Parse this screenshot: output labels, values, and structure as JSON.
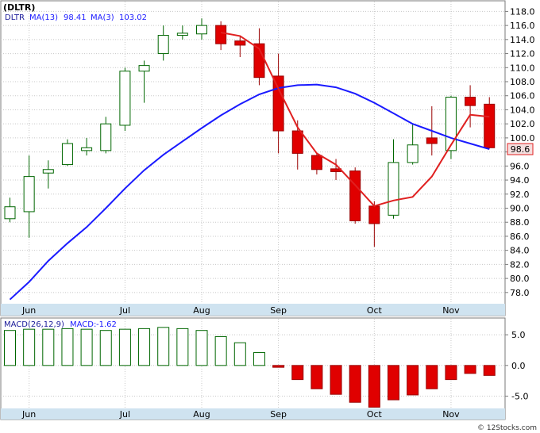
{
  "chart_data": [
    {
      "type": "candlestick",
      "title": "(DLTR)",
      "legend": [
        {
          "label": "DLTR",
          "color": "#000000"
        },
        {
          "label": "MA(13)",
          "value": "98.41",
          "color": "#1a1aff"
        },
        {
          "label": "MA(3)",
          "value": "103.02",
          "color": "#e02020"
        }
      ],
      "last_price_label": "98.6",
      "ylim": [
        76.4,
        119.4
      ],
      "y_ticks": [
        78.0,
        80.0,
        82.0,
        84.0,
        86.0,
        88.0,
        90.0,
        92.0,
        94.0,
        96.0,
        98.0,
        100.0,
        102.0,
        104.0,
        106.0,
        108.0,
        110.0,
        112.0,
        114.0,
        116.0,
        118.0
      ],
      "x_ticks": [
        {
          "index": 1,
          "label": "Jun"
        },
        {
          "index": 6,
          "label": "Jul"
        },
        {
          "index": 10,
          "label": "Aug"
        },
        {
          "index": 14,
          "label": "Sep"
        },
        {
          "index": 19,
          "label": "Oct"
        },
        {
          "index": 23,
          "label": "Nov"
        }
      ],
      "candles": [
        {
          "o": 88.5,
          "h": 91.5,
          "l": 88.0,
          "c": 90.2
        },
        {
          "o": 89.5,
          "h": 97.5,
          "l": 85.8,
          "c": 94.5
        },
        {
          "o": 95.0,
          "h": 96.8,
          "l": 92.8,
          "c": 95.5
        },
        {
          "o": 96.2,
          "h": 99.8,
          "l": 96.0,
          "c": 99.2
        },
        {
          "o": 98.2,
          "h": 100.0,
          "l": 97.5,
          "c": 98.6
        },
        {
          "o": 98.2,
          "h": 103.0,
          "l": 97.8,
          "c": 102.0
        },
        {
          "o": 101.8,
          "h": 110.0,
          "l": 101.0,
          "c": 109.5
        },
        {
          "o": 109.5,
          "h": 111.0,
          "l": 105.0,
          "c": 110.3
        },
        {
          "o": 112.0,
          "h": 116.0,
          "l": 111.0,
          "c": 114.6
        },
        {
          "o": 114.6,
          "h": 116.0,
          "l": 114.0,
          "c": 114.9
        },
        {
          "o": 114.8,
          "h": 117.0,
          "l": 114.0,
          "c": 116.0
        },
        {
          "o": 116.0,
          "h": 116.6,
          "l": 112.5,
          "c": 113.4
        },
        {
          "o": 113.8,
          "h": 114.6,
          "l": 111.5,
          "c": 113.2
        },
        {
          "o": 113.4,
          "h": 115.6,
          "l": 107.5,
          "c": 108.6
        },
        {
          "o": 108.8,
          "h": 112.0,
          "l": 97.8,
          "c": 101.0
        },
        {
          "o": 101.0,
          "h": 102.5,
          "l": 95.5,
          "c": 97.8
        },
        {
          "o": 97.5,
          "h": 97.8,
          "l": 94.8,
          "c": 95.5
        },
        {
          "o": 95.6,
          "h": 97.0,
          "l": 94.0,
          "c": 95.2
        },
        {
          "o": 95.3,
          "h": 95.8,
          "l": 87.8,
          "c": 88.2
        },
        {
          "o": 90.3,
          "h": 91.0,
          "l": 84.5,
          "c": 87.8
        },
        {
          "o": 89.0,
          "h": 99.8,
          "l": 88.5,
          "c": 96.5
        },
        {
          "o": 96.5,
          "h": 102.0,
          "l": 96.2,
          "c": 99.0
        },
        {
          "o": 100.0,
          "h": 104.5,
          "l": 97.5,
          "c": 99.2
        },
        {
          "o": 98.2,
          "h": 106.0,
          "l": 97.0,
          "c": 105.8
        },
        {
          "o": 105.8,
          "h": 107.5,
          "l": 101.5,
          "c": 104.6
        },
        {
          "o": 104.8,
          "h": 105.8,
          "l": 98.5,
          "c": 98.6
        }
      ],
      "ma13": [
        77.0,
        79.5,
        82.5,
        85.0,
        87.3,
        90.0,
        92.8,
        95.4,
        97.6,
        99.5,
        101.4,
        103.2,
        104.8,
        106.2,
        107.1,
        107.5,
        107.6,
        107.2,
        106.3,
        105.0,
        103.5,
        102.0,
        101.0,
        100.0,
        99.2,
        98.4
      ],
      "ma3": [
        null,
        null,
        null,
        null,
        null,
        null,
        null,
        null,
        null,
        null,
        null,
        115.0,
        114.5,
        112.7,
        107.0,
        101.5,
        97.8,
        96.2,
        93.3,
        90.3,
        91.1,
        91.6,
        94.5,
        99.0,
        103.3,
        103.0
      ]
    },
    {
      "type": "bar",
      "title": "MACD(26,12,9)",
      "legend_label": "MACD:",
      "legend_value": "-1.62",
      "ylim": [
        -7.0,
        7.6
      ],
      "y_ticks": [
        -5.0,
        0.0,
        5.0
      ],
      "y_tick_labels": [
        "-5.0",
        "0.0",
        "5.0"
      ],
      "x_ticks": [
        {
          "index": 1,
          "label": "Jun"
        },
        {
          "index": 6,
          "label": "Jul"
        },
        {
          "index": 10,
          "label": "Aug"
        },
        {
          "index": 14,
          "label": "Sep"
        },
        {
          "index": 19,
          "label": "Oct"
        },
        {
          "index": 23,
          "label": "Nov"
        }
      ],
      "values": [
        5.7,
        5.9,
        5.9,
        6.0,
        5.9,
        5.7,
        5.9,
        6.0,
        6.2,
        6.0,
        5.7,
        4.7,
        3.7,
        2.1,
        -0.3,
        -2.3,
        -3.8,
        -4.7,
        -6.0,
        -6.8,
        -5.6,
        -4.8,
        -3.8,
        -2.3,
        -1.3,
        -1.62
      ],
      "colors": {
        "positive": "#006600",
        "negative": "#e00000"
      }
    }
  ],
  "watermark": "© 12Stocks.com"
}
